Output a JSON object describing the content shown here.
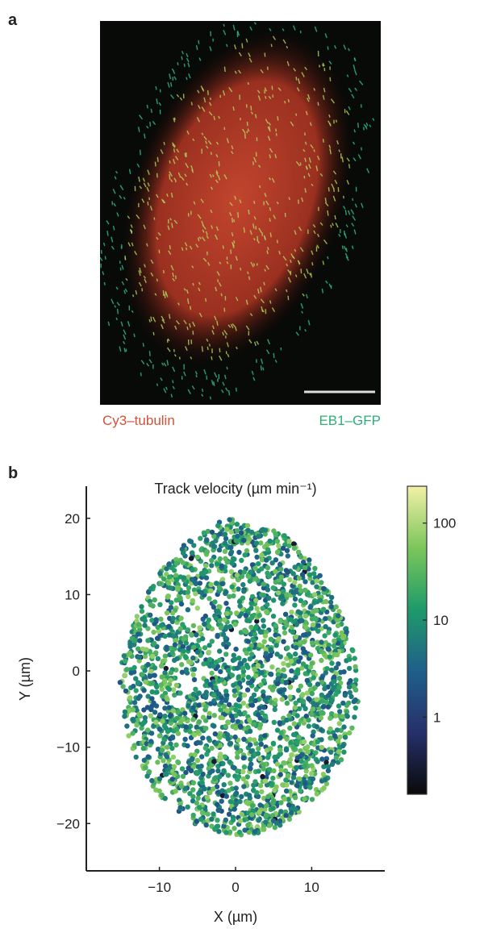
{
  "panel_a": {
    "label": "a",
    "channel_red": "Cy3–tubulin",
    "channel_green": "EB1–GFP",
    "colors": {
      "red": "#d0533a",
      "green": "#2fae78"
    }
  },
  "chart_data": {
    "type": "scatter",
    "panel_label": "b",
    "title": "Track velocity (µm min⁻¹)",
    "xlabel": "X (µm)",
    "ylabel": "Y (µm)",
    "xlim": [
      -19.6,
      19.6
    ],
    "ylim": [
      -26.2,
      24.2
    ],
    "xticks": [
      {
        "v": -10,
        "label": "−10"
      },
      {
        "v": 0,
        "label": "0"
      },
      {
        "v": 10,
        "label": "10"
      }
    ],
    "yticks": [
      {
        "v": 20,
        "label": "20"
      },
      {
        "v": 10,
        "label": "10"
      },
      {
        "v": 0,
        "label": "0"
      },
      {
        "v": -10,
        "label": "−10"
      },
      {
        "v": -20,
        "label": "−20"
      }
    ],
    "colorbar": {
      "scale": "log",
      "range": [
        0.16,
        240
      ],
      "ticks": [
        {
          "v": 100,
          "label": "100"
        },
        {
          "v": 10,
          "label": "10"
        },
        {
          "v": 1,
          "label": "1"
        }
      ],
      "colormap": [
        "#0a0a0a",
        "#26306a",
        "#1f5f8a",
        "#1f9a6a",
        "#7cc65a",
        "#f2f0a8"
      ]
    },
    "point_cloud": {
      "n_points": 2600,
      "center": [
        0.5,
        -0.8
      ],
      "x_extent": [
        -15.5,
        16
      ],
      "y_extent": [
        -21.5,
        20
      ],
      "velocity_range": [
        2,
        80
      ],
      "seed": 7
    },
    "grid": false
  }
}
